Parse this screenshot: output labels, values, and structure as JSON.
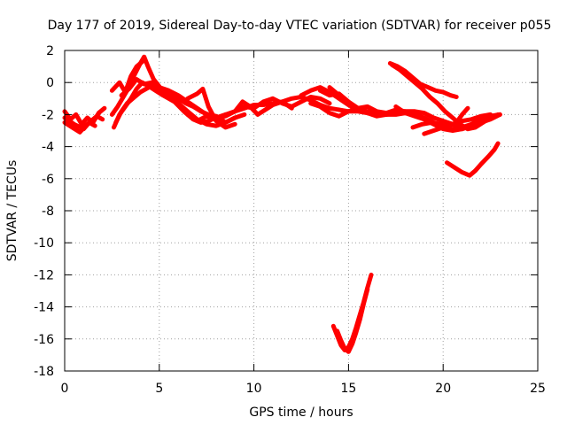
{
  "chart_data": {
    "type": "line",
    "title": "Day 177 of 2019, Sidereal Day-to-day VTEC variation (SDTVAR) for receiver p055",
    "xlabel": "GPS time / hours",
    "ylabel": "SDTVAR / TECUs",
    "xlim": [
      0,
      25
    ],
    "ylim": [
      -18,
      2
    ],
    "xticks": [
      0,
      5,
      10,
      15,
      20,
      25
    ],
    "yticks": [
      2,
      0,
      -2,
      -4,
      -6,
      -8,
      -10,
      -12,
      -14,
      -16,
      -18
    ],
    "grid": true,
    "color": "#ff0000",
    "series": [
      {
        "x": [
          0,
          0.3,
          0.6,
          0.9,
          1.2,
          1.5,
          1.8,
          2.1
        ],
        "y": [
          -1.8,
          -2.3,
          -2.0,
          -2.6,
          -2.2,
          -2.5,
          -1.9,
          -1.6
        ]
      },
      {
        "x": [
          0,
          0.4,
          0.8,
          1.1,
          1.4,
          1.7,
          2.0
        ],
        "y": [
          -2.5,
          -2.8,
          -3.1,
          -2.7,
          -2.4,
          -2.1,
          -2.3
        ]
      },
      {
        "x": [
          0,
          0.5,
          1.0,
          1.3,
          1.6
        ],
        "y": [
          -2.2,
          -2.6,
          -2.9,
          -2.5,
          -2.7
        ]
      },
      {
        "x": [
          2.7,
          3.0,
          3.3,
          3.7,
          4.0,
          4.3,
          4.6,
          5.0,
          5.5,
          6.0,
          6.5,
          7.0,
          7.5,
          8.0,
          8.5,
          9.0,
          9.5,
          10.0,
          10.5,
          11.0,
          11.5,
          12.0,
          12.5,
          13.0,
          13.5,
          14.0,
          14.5,
          15.0,
          15.5,
          16.0,
          16.5,
          17.0,
          17.5,
          18.0
        ],
        "y": [
          -2.5,
          -1.8,
          -1.3,
          -0.9,
          -0.6,
          -0.4,
          -0.2,
          -0.3,
          -0.5,
          -0.8,
          -1.2,
          -1.6,
          -2.0,
          -2.2,
          -2.1,
          -1.8,
          -1.6,
          -1.4,
          -1.4,
          -1.3,
          -1.2,
          -1.0,
          -0.9,
          -1.1,
          -1.4,
          -1.6,
          -1.7,
          -1.8,
          -1.8,
          -1.9,
          -1.9,
          -2.0,
          -2.0,
          -1.9
        ]
      },
      {
        "x": [
          2.6,
          2.9,
          3.2,
          3.5,
          3.8,
          4.1,
          4.4,
          4.8,
          5.2,
          5.8,
          6.3,
          6.8,
          7.2,
          7.6,
          8.0,
          8.5
        ],
        "y": [
          -2.8,
          -2.0,
          -1.5,
          -1.0,
          -0.4,
          0.0,
          -0.2,
          -0.5,
          -0.8,
          -1.2,
          -1.8,
          -2.3,
          -2.5,
          -2.4,
          -2.2,
          -2.0
        ]
      },
      {
        "x": [
          2.5,
          2.8,
          3.1,
          3.4,
          3.7,
          4.0,
          4.2,
          4.4,
          4.7,
          5.1,
          5.6,
          6.0,
          6.5,
          7.0,
          7.5,
          8.0,
          8.5,
          9.0
        ],
        "y": [
          -2.0,
          -1.5,
          -0.9,
          -0.3,
          0.5,
          1.2,
          1.6,
          1.0,
          0.2,
          -0.4,
          -0.9,
          -1.3,
          -1.8,
          -2.3,
          -2.6,
          -2.7,
          -2.5,
          -2.2
        ]
      },
      {
        "x": [
          3.0,
          3.4,
          3.8,
          4.2,
          4.6,
          5.0,
          5.5,
          6.0,
          6.4,
          6.8,
          7.2,
          7.6,
          8.0,
          8.4
        ],
        "y": [
          -0.8,
          -0.4,
          0.2,
          -0.1,
          0.0,
          -0.4,
          -0.8,
          -1.0,
          -1.3,
          -1.5,
          -1.8,
          -2.0,
          -2.1,
          -2.4
        ]
      },
      {
        "x": [
          2.5,
          2.9,
          3.2,
          3.5,
          3.8,
          4.1
        ],
        "y": [
          -0.5,
          0.0,
          -0.6,
          0.4,
          1.0,
          1.3
        ]
      },
      {
        "x": [
          6.5,
          7.0,
          7.3,
          7.6,
          8.0,
          8.5,
          9.0
        ],
        "y": [
          -1.0,
          -0.7,
          -0.4,
          -1.5,
          -2.4,
          -2.8,
          -2.6
        ]
      },
      {
        "x": [
          6.5,
          7.0,
          7.5,
          8.0,
          8.5,
          9.0,
          9.5
        ],
        "y": [
          -2.0,
          -2.4,
          -2.1,
          -2.3,
          -2.5,
          -2.2,
          -2.0
        ]
      },
      {
        "x": [
          8.5,
          9.0,
          9.5,
          10.0,
          10.5,
          11.0,
          11.5,
          12.0,
          12.5,
          13.0,
          13.5,
          14.0
        ],
        "y": [
          -2.0,
          -1.8,
          -1.5,
          -1.6,
          -1.2,
          -1.0,
          -1.3,
          -1.5,
          -1.2,
          -0.9,
          -1.0,
          -1.3
        ]
      },
      {
        "x": [
          9.0,
          9.4,
          9.8,
          10.2,
          10.6,
          11.0,
          11.5,
          12.0
        ],
        "y": [
          -1.8,
          -1.2,
          -1.5,
          -2.0,
          -1.7,
          -1.4,
          -1.2,
          -1.6
        ]
      },
      {
        "x": [
          12.5,
          13.0,
          13.5,
          14.0,
          14.5,
          15.0,
          15.5,
          16.0,
          16.5,
          17.0,
          17.5,
          18.0,
          18.5,
          19.0,
          19.5,
          20.0,
          20.5,
          21.0,
          21.5,
          22.0,
          22.5,
          23.0
        ],
        "y": [
          -0.8,
          -0.5,
          -0.3,
          -0.6,
          -1.0,
          -1.4,
          -1.7,
          -1.9,
          -2.0,
          -2.0,
          -1.9,
          -1.9,
          -2.0,
          -2.2,
          -2.5,
          -2.8,
          -2.9,
          -2.8,
          -2.6,
          -2.3,
          -2.1,
          -2.0
        ]
      },
      {
        "x": [
          13.5,
          14.0,
          14.5,
          15.0,
          15.5,
          16.0,
          16.5,
          17.0,
          17.5,
          18.0
        ],
        "y": [
          -0.5,
          -0.8,
          -0.7,
          -1.2,
          -1.6,
          -1.5,
          -1.8,
          -1.9,
          -1.7,
          -1.8
        ]
      },
      {
        "x": [
          13.0,
          13.5,
          14.0,
          14.5,
          15.0,
          15.5,
          16.0,
          16.5,
          17.0
        ],
        "y": [
          -1.3,
          -1.5,
          -1.9,
          -2.1,
          -1.8,
          -1.6,
          -1.9,
          -2.1,
          -2.0
        ]
      },
      {
        "x": [
          14.0,
          14.4,
          14.8,
          15.2,
          15.6,
          16.0,
          16.5
        ],
        "y": [
          -0.3,
          -0.7,
          -1.1,
          -1.5,
          -1.7,
          -1.8,
          -2.0
        ]
      },
      {
        "x": [
          17.5,
          18.0,
          18.5,
          19.0,
          19.5,
          20.0,
          20.5,
          21.0,
          21.5,
          22.0,
          22.5,
          23.0
        ],
        "y": [
          -1.9,
          -1.8,
          -1.8,
          -1.9,
          -2.2,
          -2.4,
          -2.6,
          -2.9,
          -2.6,
          -2.3,
          -2.1,
          -2.0
        ]
      },
      {
        "x": [
          17.5,
          18.0,
          18.5,
          19.0,
          19.5,
          20.0,
          20.5,
          21.0,
          21.5,
          22.0,
          22.5,
          23.0
        ],
        "y": [
          -1.5,
          -1.9,
          -2.1,
          -2.3,
          -2.6,
          -2.9,
          -3.0,
          -2.9,
          -2.7,
          -2.5,
          -2.3,
          -2.0
        ]
      },
      {
        "x": [
          17.2,
          17.6,
          18.0,
          18.4,
          18.8,
          19.2,
          19.6,
          20.0,
          20.4,
          20.7
        ],
        "y": [
          1.2,
          1.0,
          0.7,
          0.3,
          -0.1,
          -0.3,
          -0.5,
          -0.6,
          -0.8,
          -0.9
        ]
      },
      {
        "x": [
          17.3,
          17.7,
          18.1,
          18.5,
          18.9,
          19.3,
          19.7,
          20.1,
          20.5,
          20.9,
          21.3,
          21.7,
          22.1,
          22.5,
          22.9
        ],
        "y": [
          1.1,
          0.8,
          0.4,
          0.0,
          -0.4,
          -0.9,
          -1.3,
          -1.8,
          -2.2,
          -2.6,
          -2.9,
          -2.8,
          -2.5,
          -2.2,
          -2.0
        ]
      },
      {
        "x": [
          18.4,
          18.9,
          19.4,
          19.9,
          20.3,
          20.7,
          21.0,
          21.3
        ],
        "y": [
          -2.8,
          -2.6,
          -2.5,
          -2.6,
          -2.7,
          -2.5,
          -2.0,
          -1.6
        ]
      },
      {
        "x": [
          19.0,
          19.5,
          20.0,
          20.5,
          21.0,
          21.5,
          22.0,
          22.5
        ],
        "y": [
          -3.2,
          -3.0,
          -2.8,
          -2.6,
          -2.4,
          -2.3,
          -2.1,
          -2.0
        ]
      },
      {
        "x": [
          20.2,
          20.6,
          21.0,
          21.4,
          21.7,
          22.0,
          22.4,
          22.7,
          22.9
        ],
        "y": [
          -5.0,
          -5.3,
          -5.6,
          -5.8,
          -5.5,
          -5.1,
          -4.6,
          -4.2,
          -3.8
        ]
      },
      {
        "x": [
          14.2,
          14.4,
          14.6,
          14.8,
          15.0,
          15.2,
          15.4,
          15.6,
          15.8,
          16.0,
          16.2
        ],
        "y": [
          -15.2,
          -15.8,
          -16.4,
          -16.7,
          -16.5,
          -16.0,
          -15.3,
          -14.5,
          -13.7,
          -12.8,
          -12.0
        ]
      },
      {
        "x": [
          14.4,
          14.6,
          14.8,
          15.0,
          15.2,
          15.4,
          15.6,
          15.8,
          16.0
        ],
        "y": [
          -15.5,
          -16.1,
          -16.6,
          -16.8,
          -16.3,
          -15.6,
          -14.8,
          -13.8,
          -12.9
        ]
      }
    ]
  }
}
